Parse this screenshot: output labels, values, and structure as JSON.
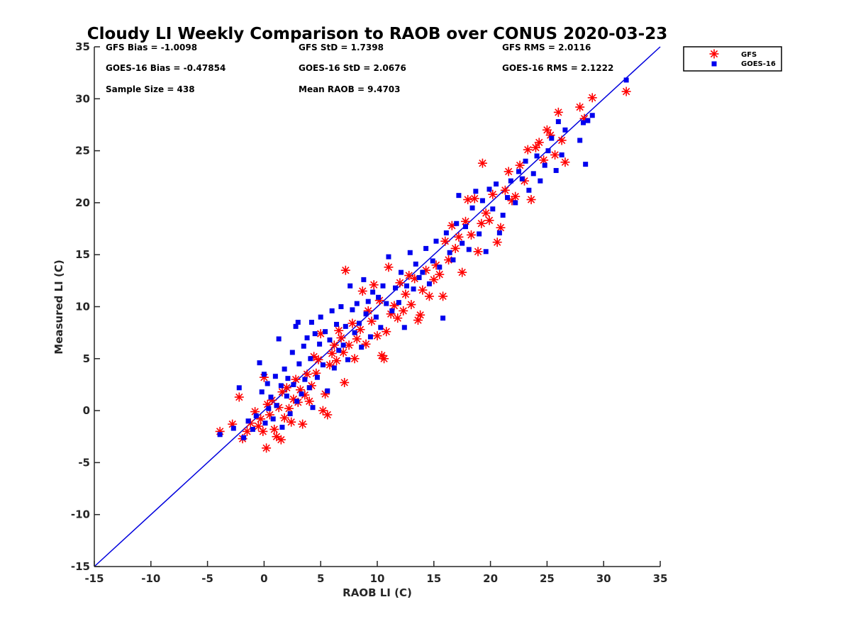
{
  "chart_data": {
    "type": "scatter",
    "title": "Cloudy LI Weekly Comparison to RAOB over CONUS 2020-03-23",
    "xlabel": "RAOB LI (C)",
    "ylabel": "Measured LI (C)",
    "xlim": [
      -15,
      35
    ],
    "ylim": [
      -15,
      35
    ],
    "xticks": [
      "-15",
      "-10",
      "-5",
      "0",
      "5",
      "10",
      "15",
      "20",
      "25",
      "30",
      "35"
    ],
    "yticks": [
      "35",
      "30",
      "25",
      "20",
      "15",
      "10",
      "5",
      "0",
      "-5",
      "-10",
      "-15"
    ],
    "grid": false,
    "legend_position": "top-right (outside axes)",
    "stats": [
      "GFS Bias = -1.0098",
      "GFS StD = 1.7398",
      "GFS RMS = 2.0116",
      "GOES-16 Bias = -0.47854",
      "GOES-16 StD = 2.0676",
      "GOES-16 RMS = 2.1222",
      "Sample Size = 438",
      "Mean RAOB = 9.4703"
    ],
    "reference_line": {
      "x": [
        -15,
        35
      ],
      "y": [
        -15,
        35
      ],
      "color": "#0000dd"
    },
    "series": [
      {
        "name": "GFS",
        "marker": "asterisk",
        "color": "#ff0000",
        "points": [
          [
            -3.9,
            -2.0
          ],
          [
            -2.8,
            -1.3
          ],
          [
            -2.2,
            1.3
          ],
          [
            -1.9,
            -2.7
          ],
          [
            -1.5,
            -2.0
          ],
          [
            -1.2,
            -1.2
          ],
          [
            -0.8,
            -0.1
          ],
          [
            -0.5,
            -1.5
          ],
          [
            -0.3,
            -0.8
          ],
          [
            -0.1,
            -2.0
          ],
          [
            0.0,
            3.2
          ],
          [
            0.2,
            -3.6
          ],
          [
            0.3,
            0.6
          ],
          [
            0.5,
            -0.4
          ],
          [
            0.7,
            1.0
          ],
          [
            0.9,
            -1.8
          ],
          [
            1.1,
            -2.5
          ],
          [
            1.3,
            0.3
          ],
          [
            1.5,
            -2.8
          ],
          [
            1.6,
            1.8
          ],
          [
            1.8,
            -0.7
          ],
          [
            2.0,
            2.2
          ],
          [
            2.2,
            0.2
          ],
          [
            2.4,
            -1.1
          ],
          [
            2.6,
            1.1
          ],
          [
            2.8,
            3.0
          ],
          [
            3.0,
            0.8
          ],
          [
            3.2,
            2.0
          ],
          [
            3.4,
            -1.3
          ],
          [
            3.6,
            1.5
          ],
          [
            3.8,
            3.5
          ],
          [
            4.0,
            0.9
          ],
          [
            4.2,
            2.4
          ],
          [
            4.4,
            5.2
          ],
          [
            4.6,
            3.6
          ],
          [
            4.8,
            4.9
          ],
          [
            5.0,
            7.4
          ],
          [
            5.2,
            0.0
          ],
          [
            5.4,
            1.6
          ],
          [
            5.6,
            -0.4
          ],
          [
            5.8,
            4.4
          ],
          [
            6.0,
            5.5
          ],
          [
            6.2,
            6.3
          ],
          [
            6.4,
            4.8
          ],
          [
            6.6,
            7.7
          ],
          [
            6.8,
            7.0
          ],
          [
            7.0,
            5.6
          ],
          [
            7.1,
            2.7
          ],
          [
            7.2,
            13.5
          ],
          [
            7.5,
            6.3
          ],
          [
            7.8,
            8.4
          ],
          [
            8.0,
            5.0
          ],
          [
            8.2,
            6.9
          ],
          [
            8.5,
            7.8
          ],
          [
            8.7,
            11.5
          ],
          [
            9.0,
            6.4
          ],
          [
            9.2,
            9.6
          ],
          [
            9.5,
            8.6
          ],
          [
            9.7,
            12.1
          ],
          [
            10.0,
            7.2
          ],
          [
            10.2,
            10.6
          ],
          [
            10.4,
            5.3
          ],
          [
            10.6,
            5.0
          ],
          [
            10.8,
            7.6
          ],
          [
            11.0,
            13.8
          ],
          [
            11.2,
            9.3
          ],
          [
            11.5,
            10.1
          ],
          [
            11.8,
            8.9
          ],
          [
            12.0,
            12.3
          ],
          [
            12.3,
            9.6
          ],
          [
            12.5,
            11.2
          ],
          [
            12.8,
            13.0
          ],
          [
            13.0,
            10.2
          ],
          [
            13.3,
            12.7
          ],
          [
            13.6,
            8.7
          ],
          [
            13.8,
            9.2
          ],
          [
            14.0,
            11.6
          ],
          [
            14.3,
            13.5
          ],
          [
            14.6,
            11.0
          ],
          [
            15.0,
            12.6
          ],
          [
            15.2,
            14.0
          ],
          [
            15.5,
            13.1
          ],
          [
            15.8,
            11.0
          ],
          [
            16.0,
            16.3
          ],
          [
            16.3,
            14.5
          ],
          [
            16.6,
            17.8
          ],
          [
            16.9,
            15.6
          ],
          [
            17.2,
            16.7
          ],
          [
            17.5,
            13.3
          ],
          [
            17.8,
            18.2
          ],
          [
            18.0,
            20.3
          ],
          [
            18.3,
            16.9
          ],
          [
            18.6,
            20.4
          ],
          [
            18.9,
            15.3
          ],
          [
            19.2,
            18.0
          ],
          [
            19.3,
            23.8
          ],
          [
            19.6,
            19.0
          ],
          [
            19.9,
            18.3
          ],
          [
            20.2,
            20.8
          ],
          [
            20.6,
            16.2
          ],
          [
            20.9,
            17.6
          ],
          [
            21.3,
            21.2
          ],
          [
            21.6,
            23.0
          ],
          [
            21.9,
            20.2
          ],
          [
            22.2,
            20.6
          ],
          [
            22.6,
            23.6
          ],
          [
            23.0,
            22.1
          ],
          [
            23.3,
            25.1
          ],
          [
            23.6,
            20.3
          ],
          [
            24.0,
            25.3
          ],
          [
            24.3,
            25.8
          ],
          [
            24.7,
            24.1
          ],
          [
            25.0,
            27.0
          ],
          [
            25.3,
            26.5
          ],
          [
            25.7,
            24.6
          ],
          [
            26.0,
            28.7
          ],
          [
            26.3,
            26.0
          ],
          [
            26.6,
            23.9
          ],
          [
            27.9,
            29.2
          ],
          [
            28.3,
            28.1
          ],
          [
            29.0,
            30.1
          ],
          [
            32.0,
            30.7
          ]
        ]
      },
      {
        "name": "GOES-16",
        "marker": "square",
        "color": "#0000ee",
        "points": [
          [
            -3.9,
            -2.3
          ],
          [
            -2.7,
            -1.7
          ],
          [
            -2.2,
            2.2
          ],
          [
            -1.8,
            -2.6
          ],
          [
            -1.4,
            -1.0
          ],
          [
            -1.0,
            -1.8
          ],
          [
            -0.7,
            -0.5
          ],
          [
            -0.4,
            4.6
          ],
          [
            -0.2,
            1.8
          ],
          [
            0.0,
            3.5
          ],
          [
            0.1,
            -1.2
          ],
          [
            0.3,
            2.6
          ],
          [
            0.4,
            0.2
          ],
          [
            0.6,
            1.3
          ],
          [
            0.8,
            -0.8
          ],
          [
            1.0,
            3.3
          ],
          [
            1.1,
            0.5
          ],
          [
            1.3,
            6.9
          ],
          [
            1.5,
            2.4
          ],
          [
            1.6,
            -1.6
          ],
          [
            1.8,
            4.0
          ],
          [
            2.0,
            1.4
          ],
          [
            2.1,
            3.1
          ],
          [
            2.3,
            -0.3
          ],
          [
            2.5,
            5.6
          ],
          [
            2.6,
            2.5
          ],
          [
            2.8,
            8.1
          ],
          [
            2.9,
            0.9
          ],
          [
            3.0,
            8.5
          ],
          [
            3.1,
            4.5
          ],
          [
            3.3,
            1.6
          ],
          [
            3.5,
            6.2
          ],
          [
            3.6,
            3.0
          ],
          [
            3.8,
            7.0
          ],
          [
            4.0,
            2.2
          ],
          [
            4.1,
            5.0
          ],
          [
            4.2,
            8.5
          ],
          [
            4.3,
            0.3
          ],
          [
            4.5,
            7.4
          ],
          [
            4.7,
            3.2
          ],
          [
            4.9,
            6.4
          ],
          [
            5.0,
            9.0
          ],
          [
            5.2,
            4.4
          ],
          [
            5.4,
            7.6
          ],
          [
            5.6,
            1.9
          ],
          [
            5.8,
            6.8
          ],
          [
            6.0,
            9.6
          ],
          [
            6.2,
            4.1
          ],
          [
            6.4,
            8.3
          ],
          [
            6.6,
            5.8
          ],
          [
            6.8,
            10.0
          ],
          [
            7.0,
            6.3
          ],
          [
            7.2,
            8.1
          ],
          [
            7.4,
            4.9
          ],
          [
            7.6,
            12.0
          ],
          [
            7.8,
            9.7
          ],
          [
            8.0,
            7.5
          ],
          [
            8.2,
            10.3
          ],
          [
            8.4,
            8.4
          ],
          [
            8.6,
            6.1
          ],
          [
            8.8,
            12.6
          ],
          [
            9.0,
            9.3
          ],
          [
            9.2,
            10.5
          ],
          [
            9.4,
            7.1
          ],
          [
            9.6,
            11.4
          ],
          [
            9.9,
            9.0
          ],
          [
            10.1,
            10.9
          ],
          [
            10.3,
            8.0
          ],
          [
            10.5,
            12.0
          ],
          [
            10.8,
            10.3
          ],
          [
            11.0,
            14.8
          ],
          [
            11.3,
            9.6
          ],
          [
            11.6,
            11.8
          ],
          [
            11.9,
            10.4
          ],
          [
            12.1,
            13.3
          ],
          [
            12.4,
            8.0
          ],
          [
            12.6,
            12.0
          ],
          [
            12.9,
            15.2
          ],
          [
            13.2,
            11.7
          ],
          [
            13.4,
            14.1
          ],
          [
            13.7,
            12.8
          ],
          [
            14.0,
            13.3
          ],
          [
            14.3,
            15.6
          ],
          [
            14.6,
            12.2
          ],
          [
            14.9,
            14.4
          ],
          [
            15.2,
            16.3
          ],
          [
            15.5,
            13.8
          ],
          [
            15.8,
            8.9
          ],
          [
            16.1,
            17.1
          ],
          [
            16.4,
            15.2
          ],
          [
            16.7,
            14.5
          ],
          [
            17.0,
            18.0
          ],
          [
            17.2,
            20.7
          ],
          [
            17.5,
            16.1
          ],
          [
            17.8,
            17.7
          ],
          [
            18.1,
            15.5
          ],
          [
            18.4,
            19.5
          ],
          [
            18.7,
            21.1
          ],
          [
            19.0,
            17.0
          ],
          [
            19.3,
            20.2
          ],
          [
            19.6,
            15.3
          ],
          [
            19.9,
            21.3
          ],
          [
            20.2,
            19.4
          ],
          [
            20.5,
            21.8
          ],
          [
            20.8,
            17.1
          ],
          [
            21.1,
            18.8
          ],
          [
            21.5,
            20.5
          ],
          [
            21.8,
            22.1
          ],
          [
            22.2,
            20.0
          ],
          [
            22.5,
            23.0
          ],
          [
            22.8,
            22.3
          ],
          [
            23.1,
            24.0
          ],
          [
            23.4,
            21.2
          ],
          [
            23.8,
            22.8
          ],
          [
            24.1,
            24.5
          ],
          [
            24.4,
            22.1
          ],
          [
            24.8,
            23.6
          ],
          [
            25.1,
            25.0
          ],
          [
            25.4,
            26.2
          ],
          [
            25.8,
            23.1
          ],
          [
            26.0,
            27.8
          ],
          [
            26.3,
            24.6
          ],
          [
            26.6,
            27.0
          ],
          [
            27.9,
            26.0
          ],
          [
            28.2,
            27.7
          ],
          [
            28.4,
            23.7
          ],
          [
            28.6,
            27.9
          ],
          [
            29.0,
            28.4
          ],
          [
            32.0,
            31.8
          ]
        ]
      }
    ]
  }
}
